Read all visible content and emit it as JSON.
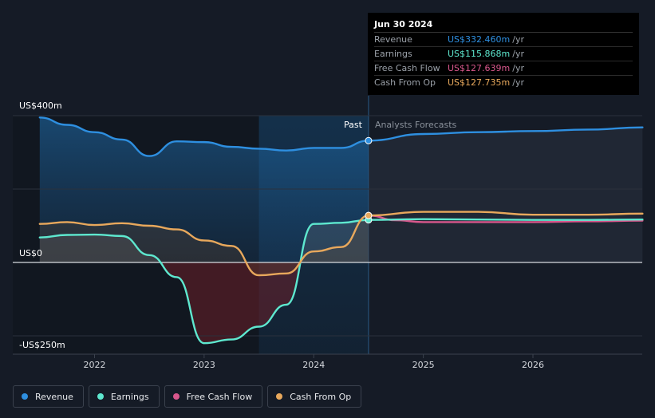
{
  "tooltip": {
    "date": "Jun 30 2024",
    "rows": [
      {
        "label": "Revenue",
        "value": "US$332.460m",
        "unit": "/yr",
        "color": "#2e8fe0"
      },
      {
        "label": "Earnings",
        "value": "US$115.868m",
        "unit": "/yr",
        "color": "#5ee8cf"
      },
      {
        "label": "Free Cash Flow",
        "value": "US$127.639m",
        "unit": "/yr",
        "color": "#d8578c"
      },
      {
        "label": "Cash From Op",
        "value": "US$127.735m",
        "unit": "/yr",
        "color": "#e8a85c"
      }
    ]
  },
  "legend": [
    {
      "label": "Revenue",
      "color": "#2e8fe0"
    },
    {
      "label": "Earnings",
      "color": "#5ee8cf"
    },
    {
      "label": "Free Cash Flow",
      "color": "#d8578c"
    },
    {
      "label": "Cash From Op",
      "color": "#e8a85c"
    }
  ],
  "chart_data": {
    "type": "line",
    "y_tick_labels": {
      "top": "US$400m",
      "zero": "US$0",
      "bottom": "-US$250m"
    },
    "ylim": [
      -250,
      400
    ],
    "xlim": [
      2021.5,
      2027.0
    ],
    "x_tick_labels": [
      "2022",
      "2023",
      "2024",
      "2025",
      "2026"
    ],
    "x_ticks": [
      2022,
      2023,
      2024,
      2025,
      2026
    ],
    "past_label": "Past",
    "forecast_label": "Analysts Forecasts",
    "past_end": 2024.5,
    "highlight_start": 2023.5,
    "series": [
      {
        "name": "Revenue",
        "color": "#2e8fe0",
        "x": [
          2021.5,
          2021.75,
          2022.0,
          2022.25,
          2022.5,
          2022.75,
          2023.0,
          2023.25,
          2023.5,
          2023.75,
          2024.0,
          2024.25,
          2024.5,
          2025.0,
          2025.5,
          2026.0,
          2026.5,
          2027.0
        ],
        "y": [
          395,
          375,
          355,
          335,
          290,
          330,
          328,
          315,
          310,
          305,
          312,
          312,
          332,
          350,
          355,
          358,
          362,
          368
        ]
      },
      {
        "name": "Earnings",
        "color": "#5ee8cf",
        "x": [
          2021.5,
          2021.75,
          2022.0,
          2022.25,
          2022.5,
          2022.75,
          2023.0,
          2023.25,
          2023.5,
          2023.75,
          2024.0,
          2024.25,
          2024.5,
          2025.0,
          2025.5,
          2026.0,
          2026.5,
          2027.0
        ],
        "y": [
          68,
          75,
          76,
          72,
          20,
          -40,
          -220,
          -210,
          -175,
          -115,
          105,
          108,
          116,
          118,
          117,
          116,
          116,
          117
        ]
      },
      {
        "name": "Free Cash Flow",
        "color": "#d8578c",
        "x": [
          2024.5,
          2024.75,
          2025.0,
          2025.5,
          2026.0,
          2026.5,
          2027.0
        ],
        "y": [
          128,
          115,
          110,
          110,
          110,
          112,
          114
        ]
      },
      {
        "name": "Cash From Op",
        "color": "#e8a85c",
        "x": [
          2021.5,
          2021.75,
          2022.0,
          2022.25,
          2022.5,
          2022.75,
          2023.0,
          2023.25,
          2023.5,
          2023.75,
          2024.0,
          2024.25,
          2024.5,
          2025.0,
          2025.5,
          2026.0,
          2026.5,
          2027.0
        ],
        "y": [
          105,
          110,
          102,
          107,
          100,
          90,
          60,
          45,
          -35,
          -30,
          30,
          42,
          128,
          138,
          138,
          130,
          130,
          133
        ]
      }
    ]
  }
}
